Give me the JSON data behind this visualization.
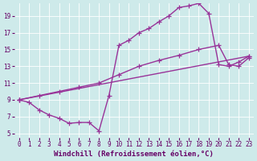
{
  "background_color": "#ceeaea",
  "line_color": "#993399",
  "marker": "+",
  "markersize": 5,
  "linewidth": 1.0,
  "xlabel": "Windchill (Refroidissement éolien,°C)",
  "xlabel_fontsize": 6.5,
  "tick_fontsize": 5.5,
  "xlim": [
    -0.5,
    23.5
  ],
  "ylim": [
    4.5,
    20.5
  ],
  "xticks": [
    0,
    1,
    2,
    3,
    4,
    5,
    6,
    7,
    8,
    9,
    10,
    11,
    12,
    13,
    14,
    15,
    16,
    17,
    18,
    19,
    20,
    21,
    22,
    23
  ],
  "yticks": [
    5,
    7,
    9,
    11,
    13,
    15,
    17,
    19
  ],
  "series": [
    {
      "x": [
        0,
        1,
        2,
        3,
        4,
        5,
        6,
        7,
        8,
        9,
        10,
        11,
        12,
        13,
        14,
        15,
        16,
        17,
        18,
        19,
        20,
        21,
        22,
        23
      ],
      "y": [
        9.0,
        8.7,
        7.8,
        7.2,
        6.8,
        6.2,
        6.3,
        6.3,
        5.3,
        9.5,
        15.5,
        16.1,
        17.0,
        17.5,
        18.3,
        19.0,
        20.0,
        20.2,
        20.5,
        19.3,
        13.2,
        13.0,
        13.5,
        14.2
      ]
    },
    {
      "x": [
        0,
        2,
        4,
        6,
        8,
        10,
        12,
        14,
        16,
        18,
        20,
        21,
        22,
        23
      ],
      "y": [
        9.0,
        9.5,
        10.0,
        10.5,
        11.0,
        12.0,
        13.0,
        13.7,
        14.3,
        15.0,
        15.5,
        13.2,
        13.0,
        14.0
      ]
    },
    {
      "x": [
        0,
        23
      ],
      "y": [
        9.0,
        14.2
      ]
    }
  ]
}
